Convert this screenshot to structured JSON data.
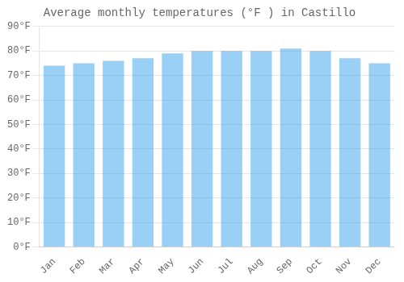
{
  "chart_data": {
    "type": "bar",
    "title": "Average monthly temperatures (°F ) in Castillo",
    "categories": [
      "Jan",
      "Feb",
      "Mar",
      "Apr",
      "May",
      "Jun",
      "Jul",
      "Aug",
      "Sep",
      "Oct",
      "Nov",
      "Dec"
    ],
    "values": [
      74,
      75,
      76,
      77,
      79,
      80,
      80,
      80,
      81,
      80,
      77,
      75
    ],
    "ylim": [
      0,
      90
    ],
    "yticks": [
      {
        "value": 0,
        "label": "0°F"
      },
      {
        "value": 10,
        "label": "10°F"
      },
      {
        "value": 20,
        "label": "20°F"
      },
      {
        "value": 30,
        "label": "30°F"
      },
      {
        "value": 40,
        "label": "40°F"
      },
      {
        "value": 50,
        "label": "50°F"
      },
      {
        "value": 60,
        "label": "60°F"
      },
      {
        "value": 70,
        "label": "70°F"
      },
      {
        "value": 80,
        "label": "80°F"
      },
      {
        "value": 90,
        "label": "90°F"
      }
    ],
    "grid": true
  }
}
